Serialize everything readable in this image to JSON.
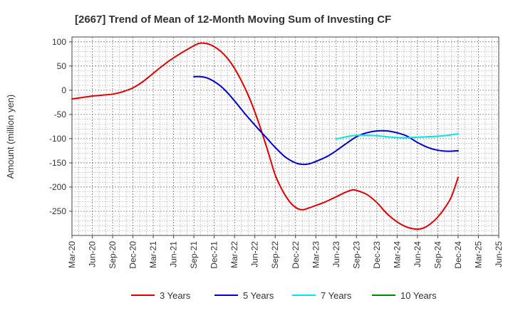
{
  "chart_data": {
    "type": "line",
    "title": "[2667]  Trend of Mean of 12-Month Moving Sum of Investing CF",
    "xlabel": "",
    "ylabel": "Amount (million yen)",
    "ylim": [
      -300,
      110
    ],
    "yticks": [
      100,
      50,
      0,
      -50,
      -100,
      -150,
      -200,
      -250
    ],
    "x_categories": [
      "Mar-20",
      "Jun-20",
      "Sep-20",
      "Dec-20",
      "Mar-21",
      "Jun-21",
      "Sep-21",
      "Dec-21",
      "Mar-22",
      "Jun-22",
      "Sep-22",
      "Dec-22",
      "Mar-23",
      "Jun-23",
      "Sep-23",
      "Dec-23",
      "Mar-24",
      "Jun-24",
      "Sep-24",
      "Dec-24",
      "Mar-25",
      "Jun-25"
    ],
    "grid": true,
    "legend_position": "bottom",
    "series": [
      {
        "name": "3 Years",
        "color": "#e00000",
        "points": [
          [
            0,
            -18
          ],
          [
            0.5,
            -15
          ],
          [
            1,
            -12
          ],
          [
            1.5,
            -10
          ],
          [
            2,
            -8
          ],
          [
            2.5,
            -3
          ],
          [
            3,
            5
          ],
          [
            3.5,
            18
          ],
          [
            4,
            35
          ],
          [
            4.5,
            52
          ],
          [
            5,
            67
          ],
          [
            5.5,
            80
          ],
          [
            6,
            92
          ],
          [
            6.3,
            97
          ],
          [
            6.67,
            96
          ],
          [
            7,
            90
          ],
          [
            7.33,
            80
          ],
          [
            7.67,
            65
          ],
          [
            8,
            45
          ],
          [
            8.33,
            20
          ],
          [
            8.67,
            -10
          ],
          [
            9,
            -45
          ],
          [
            9.33,
            -85
          ],
          [
            9.67,
            -130
          ],
          [
            10,
            -175
          ],
          [
            10.33,
            -205
          ],
          [
            10.67,
            -228
          ],
          [
            11,
            -242
          ],
          [
            11.33,
            -247
          ],
          [
            11.67,
            -243
          ],
          [
            12,
            -238
          ],
          [
            12.5,
            -230
          ],
          [
            13,
            -220
          ],
          [
            13.5,
            -210
          ],
          [
            13.8,
            -206
          ],
          [
            14,
            -207
          ],
          [
            14.5,
            -215
          ],
          [
            15,
            -232
          ],
          [
            15.5,
            -255
          ],
          [
            16,
            -272
          ],
          [
            16.5,
            -283
          ],
          [
            17,
            -287
          ],
          [
            17.33,
            -284
          ],
          [
            17.67,
            -275
          ],
          [
            18,
            -262
          ],
          [
            18.33,
            -244
          ],
          [
            18.67,
            -220
          ],
          [
            19,
            -180
          ]
        ]
      },
      {
        "name": "5 Years",
        "color": "#0000cc",
        "points": [
          [
            6,
            28
          ],
          [
            6.33,
            28
          ],
          [
            6.67,
            25
          ],
          [
            7,
            18
          ],
          [
            7.33,
            8
          ],
          [
            7.67,
            -6
          ],
          [
            8,
            -22
          ],
          [
            8.5,
            -48
          ],
          [
            9,
            -72
          ],
          [
            9.5,
            -95
          ],
          [
            10,
            -118
          ],
          [
            10.5,
            -138
          ],
          [
            11,
            -150
          ],
          [
            11.33,
            -153
          ],
          [
            11.67,
            -152
          ],
          [
            12,
            -147
          ],
          [
            12.5,
            -138
          ],
          [
            13,
            -125
          ],
          [
            13.5,
            -110
          ],
          [
            14,
            -96
          ],
          [
            14.5,
            -88
          ],
          [
            15,
            -84
          ],
          [
            15.5,
            -84
          ],
          [
            16,
            -88
          ],
          [
            16.5,
            -95
          ],
          [
            17,
            -108
          ],
          [
            17.5,
            -118
          ],
          [
            18,
            -124
          ],
          [
            18.5,
            -126
          ],
          [
            19,
            -125
          ]
        ]
      },
      {
        "name": "7 Years",
        "color": "#00e5e5",
        "points": [
          [
            13,
            -101
          ],
          [
            13.5,
            -96
          ],
          [
            14,
            -93
          ],
          [
            14.5,
            -93
          ],
          [
            15,
            -94
          ],
          [
            15.5,
            -96
          ],
          [
            16,
            -98
          ],
          [
            16.5,
            -98
          ],
          [
            17,
            -97
          ],
          [
            17.5,
            -96
          ],
          [
            18,
            -95
          ],
          [
            18.5,
            -93
          ],
          [
            19,
            -90
          ]
        ]
      },
      {
        "name": "10 Years",
        "color": "#008800",
        "points": []
      }
    ]
  }
}
